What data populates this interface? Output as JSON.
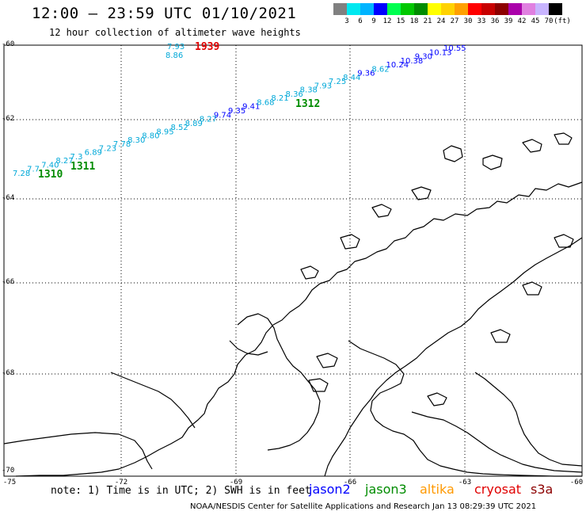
{
  "header": {
    "title": "12:00 – 23:59 UTC 01/10/2021",
    "subtitle": "12 hour collection of altimeter wave heights"
  },
  "color_scale": {
    "colors": [
      "#808080",
      "#00e8f0",
      "#00b4ff",
      "#0000ff",
      "#00ff50",
      "#00c800",
      "#008c00",
      "#ffff00",
      "#ffd200",
      "#ffa000",
      "#ff0000",
      "#c80000",
      "#8c0000",
      "#aa00aa",
      "#e080e0",
      "#c8b4ff",
      "#000000"
    ],
    "labels": [
      "3",
      "6",
      "9",
      "12",
      "15",
      "18",
      "21",
      "24",
      "27",
      "30",
      "33",
      "36",
      "39",
      "42",
      "45",
      "70",
      "(ft)"
    ]
  },
  "axes": {
    "lat_labels": [
      "-60",
      "-62",
      "-64",
      "-66",
      "-68",
      "-70"
    ],
    "lon_labels": [
      "-75",
      "-72",
      "-69",
      "-66",
      "-63",
      "-60"
    ]
  },
  "track_points": [
    {
      "v": "7.28",
      "c": "#00a8d8"
    },
    {
      "v": "7.7",
      "c": "#00a8d8"
    },
    {
      "v": "7.40",
      "c": "#00a8d8"
    },
    {
      "v": "8.27",
      "c": "#00a8d8"
    },
    {
      "v": "7.3",
      "c": "#00a8d8"
    },
    {
      "v": "6.89",
      "c": "#00a8d8"
    },
    {
      "v": "7.23",
      "c": "#00a8d8"
    },
    {
      "v": "7.78",
      "c": "#00a8d8"
    },
    {
      "v": "8.30",
      "c": "#00a8d8"
    },
    {
      "v": "8.80",
      "c": "#00a8d8"
    },
    {
      "v": "8.95",
      "c": "#00a8d8"
    },
    {
      "v": "8.52",
      "c": "#00a8d8"
    },
    {
      "v": "8.89",
      "c": "#00a8d8"
    },
    {
      "v": "8.27",
      "c": "#00a8d8"
    },
    {
      "v": "9.74",
      "c": "#0000ff"
    },
    {
      "v": "9.35",
      "c": "#0000ff"
    },
    {
      "v": "9.41",
      "c": "#0000ff"
    },
    {
      "v": "8.68",
      "c": "#00a8d8"
    },
    {
      "v": "8.21",
      "c": "#00a8d8"
    },
    {
      "v": "8.36",
      "c": "#00a8d8"
    },
    {
      "v": "8.38",
      "c": "#00a8d8"
    },
    {
      "v": "7.93",
      "c": "#00a8d8"
    },
    {
      "v": "7.25",
      "c": "#00a8d8"
    },
    {
      "v": "8.44",
      "c": "#00a8d8"
    },
    {
      "v": "9.36",
      "c": "#0000ff"
    },
    {
      "v": "8.62",
      "c": "#00a8d8"
    },
    {
      "v": "10.24",
      "c": "#0000ff"
    },
    {
      "v": "10.38",
      "c": "#0000ff"
    },
    {
      "v": "9.30",
      "c": "#0000ff"
    },
    {
      "v": "10.13",
      "c": "#0000ff"
    },
    {
      "v": "10.55",
      "c": "#0000ff"
    }
  ],
  "isolated_points": [
    {
      "v": "7.93",
      "c": "#00a8d8"
    },
    {
      "v": "8.86",
      "c": "#00a8d8"
    }
  ],
  "time_labels": [
    {
      "t": "1310",
      "c": "#008c00"
    },
    {
      "t": "1311",
      "c": "#008c00"
    },
    {
      "t": "1312",
      "c": "#008c00"
    },
    {
      "t": "1939",
      "c": "#e00000"
    }
  ],
  "footer": {
    "note": "note: 1) Time is in UTC; 2) SWH is in feet",
    "satellites": [
      {
        "name": "jason2",
        "color": "#0000ff"
      },
      {
        "name": "jason3",
        "color": "#008c00"
      },
      {
        "name": "altika",
        "color": "#ff9900"
      },
      {
        "name": "cryosat",
        "color": "#e00000"
      },
      {
        "name": "s3a",
        "color": "#8c0000"
      }
    ],
    "credit": "NOAA/NESDIS Center for Satellite Applications and Research    Jan 13 08:29:39 UTC 2021"
  }
}
